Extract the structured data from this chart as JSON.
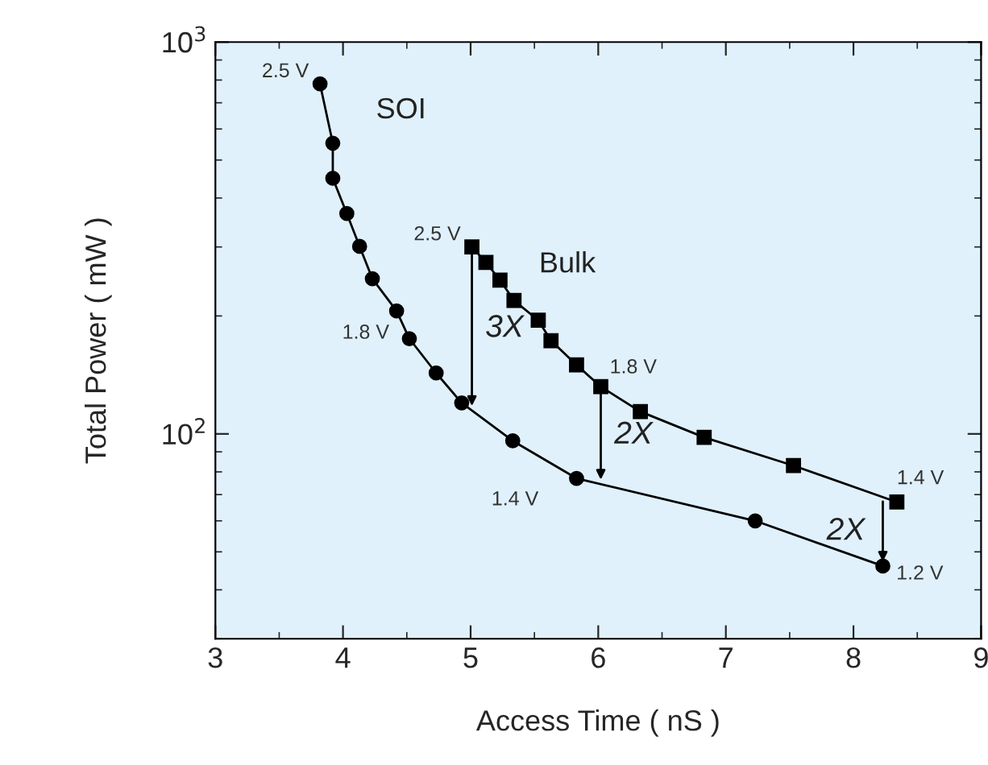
{
  "chart_data": {
    "type": "line",
    "xlabel": "Access Time ( nS )",
    "ylabel": "Total Power ( mW )",
    "log": "y",
    "xlim": [
      3,
      9
    ],
    "xticks": [
      3,
      4,
      5,
      6,
      7,
      8,
      9
    ],
    "ylim": [
      30,
      1000
    ],
    "yticks": [
      {
        "value": 100,
        "label": "10$^{2}$"
      },
      {
        "value": 1000,
        "label": "10$^{3}$"
      }
    ],
    "grid": false,
    "line_style": "solid",
    "series": [
      {
        "name": "SOI",
        "color": "#000000",
        "marker": "circle",
        "x": [
          3.82,
          3.92,
          3.92,
          4.03,
          4.13,
          4.23,
          4.42,
          4.52,
          4.73,
          4.93,
          5.33,
          5.83,
          7.23,
          8.23
        ],
        "values": [
          782,
          552,
          449,
          365,
          301,
          249,
          206,
          175,
          143,
          120,
          96,
          77,
          60,
          46
        ]
      },
      {
        "name": "Bulk",
        "color": "#000000",
        "marker": "square",
        "x": [
          5.01,
          5.12,
          5.23,
          5.34,
          5.53,
          5.63,
          5.83,
          6.02,
          6.33,
          6.83,
          7.53,
          8.34
        ],
        "values": [
          300,
          274,
          247,
          219,
          195,
          173,
          150,
          132,
          114,
          98,
          83,
          67
        ]
      }
    ],
    "annotations": [
      {
        "text": "2.5 V",
        "x": 3.82,
        "y": 782
      },
      {
        "text": "1.8 V",
        "x": 4.52,
        "y": 175
      },
      {
        "text": "1.4 V",
        "x": 5.83,
        "y": 77
      },
      {
        "text": "1.2 V",
        "x": 8.23,
        "y": 46
      },
      {
        "text": "2.5 V",
        "x": 5.01,
        "y": 300
      },
      {
        "text": "1.8 V",
        "x": 6.02,
        "y": 132
      },
      {
        "text": "1.4 V",
        "x": 8.34,
        "y": 67
      },
      "3X",
      "2X",
      "2X"
    ]
  }
}
